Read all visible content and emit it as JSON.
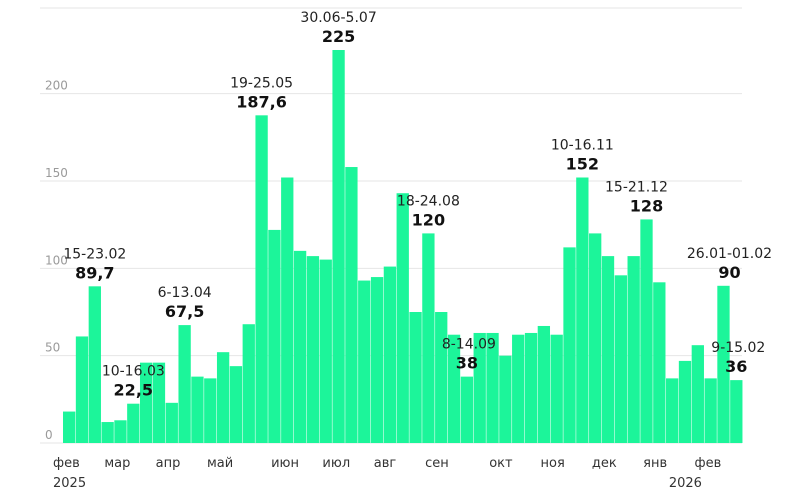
{
  "chart_data": {
    "type": "bar",
    "bar_color": "#1cf59a",
    "ylim": [
      0,
      230
    ],
    "yticks": [
      "0",
      "50",
      "100",
      "150",
      "200"
    ],
    "ytick_values": [
      0,
      50,
      100,
      150,
      200
    ],
    "values": [
      18,
      61,
      89.7,
      12,
      13,
      22.5,
      46,
      46,
      23,
      67.5,
      38,
      37,
      52,
      44,
      68,
      187.6,
      122,
      152,
      110,
      107,
      105,
      225,
      158,
      93,
      95,
      101,
      143,
      75,
      120,
      75,
      62,
      38,
      63,
      63,
      50,
      62,
      63,
      67,
      62,
      112,
      152,
      120,
      107,
      96,
      107,
      128,
      92,
      37,
      47,
      56,
      37,
      90,
      36
    ],
    "x_month_labels": [
      {
        "label": "фев",
        "index": 0
      },
      {
        "label": "мар",
        "index": 4
      },
      {
        "label": "апр",
        "index": 8
      },
      {
        "label": "май",
        "index": 12
      },
      {
        "label": "июн",
        "index": 17
      },
      {
        "label": "июл",
        "index": 21
      },
      {
        "label": "авг",
        "index": 25
      },
      {
        "label": "сен",
        "index": 29
      },
      {
        "label": "окт",
        "index": 34
      },
      {
        "label": "ноя",
        "index": 38
      },
      {
        "label": "дек",
        "index": 42
      },
      {
        "label": "янв",
        "index": 46
      },
      {
        "label": "фев",
        "index": 50
      }
    ],
    "year_labels": [
      {
        "label": "2025",
        "index": 0
      },
      {
        "label": "2026",
        "index": 48
      }
    ],
    "annotations": [
      {
        "range": "15-23.02",
        "value": "89,7",
        "index": 2
      },
      {
        "range": "10-16.03",
        "value": "22,5",
        "index": 5
      },
      {
        "range": "6-13.04",
        "value": "67,5",
        "index": 9
      },
      {
        "range": "19-25.05",
        "value": "187,6",
        "index": 15
      },
      {
        "range": "30.06-5.07",
        "value": "225",
        "index": 21
      },
      {
        "range": "18-24.08",
        "value": "120",
        "index": 28
      },
      {
        "range": "8-14.09",
        "value": "38",
        "index": 31
      },
      {
        "range": "10-16.11",
        "value": "152",
        "index": 40
      },
      {
        "range": "15-21.12",
        "value": "128",
        "index": 45
      },
      {
        "range": "26.01-01.02",
        "value": "90",
        "index": 51
      },
      {
        "range": "9-15.02",
        "value": "36",
        "index": 52
      }
    ]
  }
}
